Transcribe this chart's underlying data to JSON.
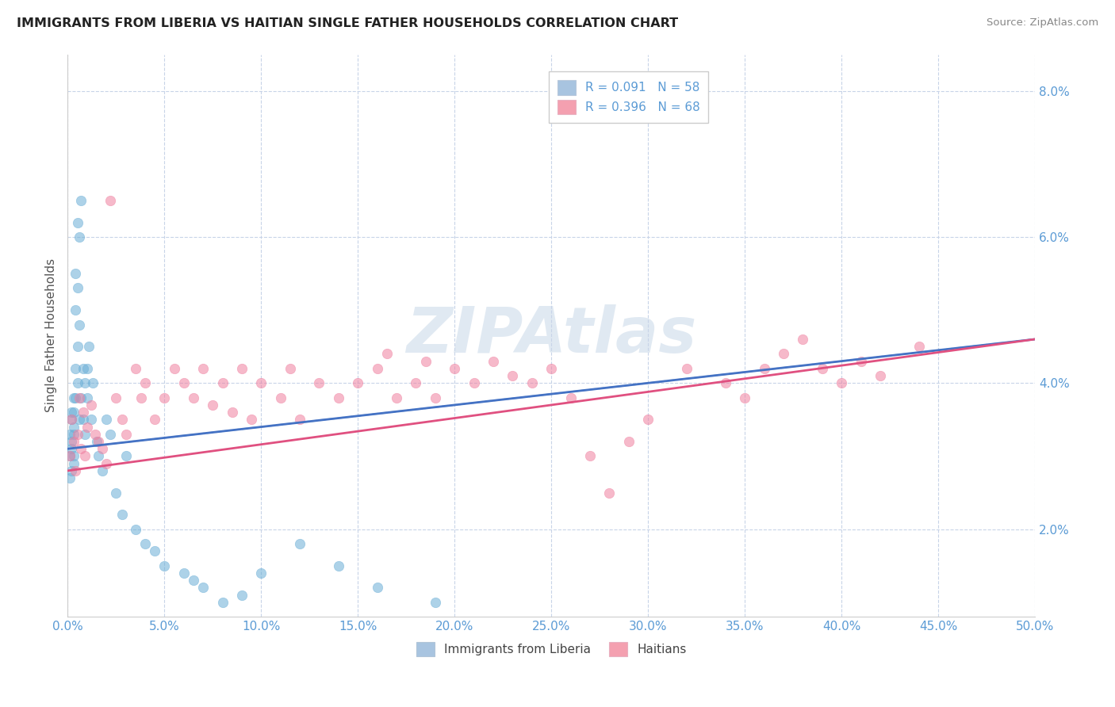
{
  "title": "IMMIGRANTS FROM LIBERIA VS HAITIAN SINGLE FATHER HOUSEHOLDS CORRELATION CHART",
  "source": "Source: ZipAtlas.com",
  "ylabel": "Single Father Households",
  "xlim": [
    0.0,
    0.5
  ],
  "ylim": [
    0.008,
    0.085
  ],
  "xticks": [
    0.0,
    0.05,
    0.1,
    0.15,
    0.2,
    0.25,
    0.3,
    0.35,
    0.4,
    0.45,
    0.5
  ],
  "yticks": [
    0.02,
    0.04,
    0.06,
    0.08
  ],
  "legend1_blue_label": "R = 0.091   N = 58",
  "legend1_pink_label": "R = 0.396   N = 68",
  "legend2_blue_label": "Immigrants from Liberia",
  "legend2_pink_label": "Haitians",
  "blue_scatter_color": "#6aaed6",
  "pink_scatter_color": "#f080a0",
  "blue_legend_color": "#a8c4e0",
  "pink_legend_color": "#f4a0b0",
  "blue_line_color": "#4472c4",
  "blue_dash_color": "#a0bcd8",
  "pink_line_color": "#e05080",
  "watermark": "ZIPAtlas",
  "background_color": "#ffffff",
  "grid_color": "#c8d4e8",
  "liberia_R": 0.091,
  "liberia_N": 58,
  "haitian_R": 0.396,
  "haitian_N": 68,
  "liberia_x": [
    0.001,
    0.001,
    0.001,
    0.002,
    0.002,
    0.002,
    0.002,
    0.002,
    0.003,
    0.003,
    0.003,
    0.003,
    0.003,
    0.003,
    0.004,
    0.004,
    0.004,
    0.004,
    0.005,
    0.005,
    0.005,
    0.005,
    0.006,
    0.006,
    0.006,
    0.007,
    0.007,
    0.008,
    0.008,
    0.009,
    0.009,
    0.01,
    0.01,
    0.011,
    0.012,
    0.013,
    0.015,
    0.016,
    0.018,
    0.02,
    0.022,
    0.025,
    0.028,
    0.03,
    0.035,
    0.04,
    0.045,
    0.05,
    0.06,
    0.065,
    0.07,
    0.08,
    0.09,
    0.1,
    0.12,
    0.14,
    0.16,
    0.19
  ],
  "liberia_y": [
    0.03,
    0.033,
    0.027,
    0.035,
    0.031,
    0.028,
    0.036,
    0.032,
    0.034,
    0.038,
    0.029,
    0.033,
    0.036,
    0.03,
    0.05,
    0.055,
    0.042,
    0.038,
    0.053,
    0.062,
    0.045,
    0.04,
    0.06,
    0.048,
    0.035,
    0.065,
    0.038,
    0.042,
    0.035,
    0.04,
    0.033,
    0.038,
    0.042,
    0.045,
    0.035,
    0.04,
    0.032,
    0.03,
    0.028,
    0.035,
    0.033,
    0.025,
    0.022,
    0.03,
    0.02,
    0.018,
    0.017,
    0.015,
    0.014,
    0.013,
    0.012,
    0.01,
    0.011,
    0.014,
    0.018,
    0.015,
    0.012,
    0.01
  ],
  "haitian_x": [
    0.001,
    0.002,
    0.003,
    0.004,
    0.005,
    0.006,
    0.007,
    0.008,
    0.009,
    0.01,
    0.012,
    0.014,
    0.016,
    0.018,
    0.02,
    0.022,
    0.025,
    0.028,
    0.03,
    0.035,
    0.038,
    0.04,
    0.045,
    0.05,
    0.055,
    0.06,
    0.065,
    0.07,
    0.075,
    0.08,
    0.085,
    0.09,
    0.095,
    0.1,
    0.11,
    0.115,
    0.12,
    0.13,
    0.14,
    0.15,
    0.16,
    0.165,
    0.17,
    0.18,
    0.185,
    0.19,
    0.2,
    0.21,
    0.22,
    0.23,
    0.24,
    0.25,
    0.26,
    0.27,
    0.28,
    0.29,
    0.3,
    0.32,
    0.34,
    0.35,
    0.36,
    0.37,
    0.38,
    0.39,
    0.4,
    0.41,
    0.42,
    0.44
  ],
  "haitian_y": [
    0.03,
    0.035,
    0.032,
    0.028,
    0.033,
    0.038,
    0.031,
    0.036,
    0.03,
    0.034,
    0.037,
    0.033,
    0.032,
    0.031,
    0.029,
    0.065,
    0.038,
    0.035,
    0.033,
    0.042,
    0.038,
    0.04,
    0.035,
    0.038,
    0.042,
    0.04,
    0.038,
    0.042,
    0.037,
    0.04,
    0.036,
    0.042,
    0.035,
    0.04,
    0.038,
    0.042,
    0.035,
    0.04,
    0.038,
    0.04,
    0.042,
    0.044,
    0.038,
    0.04,
    0.043,
    0.038,
    0.042,
    0.04,
    0.043,
    0.041,
    0.04,
    0.042,
    0.038,
    0.03,
    0.025,
    0.032,
    0.035,
    0.042,
    0.04,
    0.038,
    0.042,
    0.044,
    0.046,
    0.042,
    0.04,
    0.043,
    0.041,
    0.045
  ]
}
